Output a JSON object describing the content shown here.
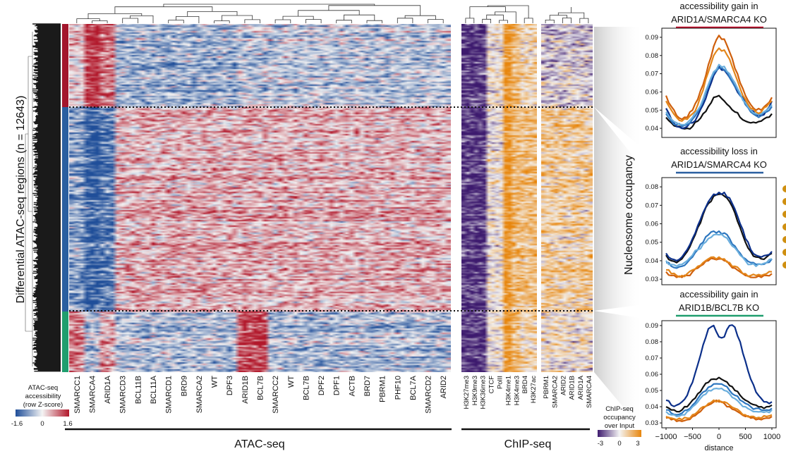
{
  "figure": {
    "row_axis_label": "Differential ATAC-seq regions (n = 12643)",
    "colorbar_atac": {
      "title_lines": [
        "ATAC-seq",
        "accessibility",
        "(row Z-score)"
      ],
      "ticks": [
        "-1.6",
        "0",
        "1.6"
      ],
      "colors": [
        "#1f4e99",
        "#f4f4f4",
        "#b2182b"
      ]
    },
    "colorbar_chip": {
      "title_lines": [
        "ChIP-seq",
        "occupancy",
        "over Input"
      ],
      "ticks": [
        "-3",
        "0",
        "3"
      ],
      "colors": [
        "#3d1a6e",
        "#f4f4f4",
        "#e8860c"
      ]
    },
    "cluster_colors": [
      "#a3162c",
      "#2a5fa0",
      "#1f9e6e"
    ],
    "group_labels": {
      "atac": "ATAC-seq",
      "chip": "ChIP-seq"
    },
    "atac_columns": [
      "SMARCC1",
      "SMARCA4",
      "ARID1A",
      "SMARCD3",
      "BCL11B",
      "BCL11A",
      "SMARCD1",
      "BRD9",
      "SMARCA2",
      "WT",
      "DPF3",
      "ARID1B",
      "BCL7B",
      "SMARCC2",
      "WT",
      "BCL7B",
      "DPF2",
      "DPF1",
      "ACTB",
      "BRD7",
      "PBRM1",
      "PHF10",
      "BCL7A",
      "SMARCD2",
      "ARID2"
    ],
    "chip_columns_histone": [
      "H3K27me3",
      "H3K9me3",
      "H3K36me3",
      "CTCF",
      "PolII",
      "H3K4me1",
      "H3K4me3",
      "BRD4",
      "H3K27ac"
    ],
    "chip_columns_baf": [
      "PBRM1",
      "SMARCA2",
      "ARID2",
      "ARID1B",
      "ARID1A",
      "SMARCA4"
    ]
  },
  "chart_data": [
    {
      "type": "line",
      "title_lines": [
        "accessibility gain in",
        "ARID1A/SMARCA4 KO"
      ],
      "title_underline_color": "#c8102e",
      "x": [
        -1000,
        -900,
        -800,
        -700,
        -600,
        -500,
        -400,
        -300,
        -200,
        -100,
        0,
        100,
        200,
        300,
        400,
        500,
        600,
        700,
        800,
        900,
        1000
      ],
      "ylim": [
        0.035,
        0.095
      ],
      "yticks": [
        0.04,
        0.05,
        0.06,
        0.07,
        0.08,
        0.09
      ],
      "show_xticks": false,
      "series": [
        {
          "color": "#111111",
          "values": [
            0.046,
            0.043,
            0.041,
            0.04,
            0.04,
            0.041,
            0.044,
            0.048,
            0.052,
            0.057,
            0.058,
            0.055,
            0.052,
            0.049,
            0.046,
            0.044,
            0.043,
            0.043,
            0.044,
            0.046,
            0.048
          ]
        },
        {
          "color": "#0b2f8a",
          "values": [
            0.051,
            0.045,
            0.041,
            0.04,
            0.041,
            0.043,
            0.047,
            0.053,
            0.061,
            0.069,
            0.074,
            0.072,
            0.068,
            0.063,
            0.058,
            0.054,
            0.05,
            0.047,
            0.047,
            0.05,
            0.055
          ]
        },
        {
          "color": "#2d76bf",
          "values": [
            0.048,
            0.044,
            0.042,
            0.041,
            0.042,
            0.045,
            0.049,
            0.055,
            0.063,
            0.07,
            0.073,
            0.072,
            0.068,
            0.063,
            0.058,
            0.053,
            0.049,
            0.047,
            0.047,
            0.049,
            0.052
          ]
        },
        {
          "color": "#6aaedd",
          "values": [
            0.049,
            0.045,
            0.043,
            0.042,
            0.043,
            0.046,
            0.05,
            0.056,
            0.064,
            0.071,
            0.075,
            0.074,
            0.07,
            0.065,
            0.059,
            0.054,
            0.05,
            0.048,
            0.048,
            0.05,
            0.053
          ]
        },
        {
          "color": "#cf5f0c",
          "values": [
            0.058,
            0.052,
            0.047,
            0.045,
            0.046,
            0.05,
            0.056,
            0.064,
            0.075,
            0.085,
            0.091,
            0.089,
            0.082,
            0.073,
            0.065,
            0.058,
            0.053,
            0.05,
            0.05,
            0.053,
            0.057
          ]
        },
        {
          "color": "#e3861a",
          "values": [
            0.055,
            0.05,
            0.046,
            0.044,
            0.045,
            0.048,
            0.053,
            0.061,
            0.071,
            0.08,
            0.084,
            0.083,
            0.078,
            0.07,
            0.062,
            0.056,
            0.051,
            0.049,
            0.049,
            0.052,
            0.055
          ]
        }
      ]
    },
    {
      "type": "line",
      "title_lines": [
        "accessibility loss in",
        "ARID1A/SMARCA4 KO"
      ],
      "title_underline_color": "#2a5fa0",
      "x": [
        -1000,
        -900,
        -800,
        -700,
        -600,
        -500,
        -400,
        -300,
        -200,
        -100,
        0,
        100,
        200,
        300,
        400,
        500,
        600,
        700,
        800,
        900,
        1000
      ],
      "ylim": [
        0.027,
        0.085
      ],
      "yticks": [
        0.03,
        0.04,
        0.05,
        0.06,
        0.07,
        0.08
      ],
      "show_xticks": false,
      "series": [
        {
          "color": "#111111",
          "values": [
            0.043,
            0.04,
            0.039,
            0.041,
            0.045,
            0.051,
            0.058,
            0.065,
            0.071,
            0.075,
            0.076,
            0.075,
            0.072,
            0.066,
            0.058,
            0.05,
            0.045,
            0.042,
            0.041,
            0.042,
            0.044
          ]
        },
        {
          "color": "#0b2f8a",
          "values": [
            0.044,
            0.041,
            0.04,
            0.042,
            0.046,
            0.052,
            0.059,
            0.066,
            0.072,
            0.076,
            0.077,
            0.077,
            0.074,
            0.068,
            0.06,
            0.052,
            0.046,
            0.043,
            0.042,
            0.043,
            0.045
          ]
        },
        {
          "color": "#2d76bf",
          "values": [
            0.039,
            0.037,
            0.036,
            0.037,
            0.039,
            0.042,
            0.046,
            0.05,
            0.054,
            0.056,
            0.056,
            0.055,
            0.052,
            0.048,
            0.044,
            0.041,
            0.039,
            0.038,
            0.038,
            0.039,
            0.041
          ]
        },
        {
          "color": "#6aaedd",
          "values": [
            0.04,
            0.038,
            0.037,
            0.038,
            0.04,
            0.043,
            0.046,
            0.049,
            0.052,
            0.054,
            0.054,
            0.053,
            0.05,
            0.047,
            0.043,
            0.04,
            0.038,
            0.037,
            0.038,
            0.039,
            0.041
          ]
        },
        {
          "color": "#cf5f0c",
          "values": [
            0.034,
            0.032,
            0.031,
            0.031,
            0.032,
            0.034,
            0.036,
            0.038,
            0.04,
            0.041,
            0.041,
            0.04,
            0.038,
            0.036,
            0.034,
            0.032,
            0.031,
            0.031,
            0.031,
            0.032,
            0.033
          ]
        },
        {
          "color": "#e3861a",
          "values": [
            0.035,
            0.033,
            0.032,
            0.032,
            0.033,
            0.035,
            0.037,
            0.039,
            0.041,
            0.042,
            0.042,
            0.041,
            0.039,
            0.037,
            0.035,
            0.033,
            0.032,
            0.032,
            0.032,
            0.033,
            0.034
          ]
        }
      ]
    },
    {
      "type": "line",
      "title_lines": [
        "accessibility gain in",
        "ARID1B/BCL7B KO"
      ],
      "title_underline_color": "#1f9e6e",
      "x": [
        -1000,
        -900,
        -800,
        -700,
        -600,
        -500,
        -400,
        -300,
        -200,
        -100,
        0,
        100,
        200,
        300,
        400,
        500,
        600,
        700,
        800,
        900,
        1000
      ],
      "ylim": [
        0.027,
        0.093
      ],
      "yticks": [
        0.03,
        0.04,
        0.05,
        0.06,
        0.07,
        0.08,
        0.09
      ],
      "show_xticks": true,
      "xticks": [
        -1000,
        -500,
        0,
        500,
        1000
      ],
      "xticklabels": [
        "−1000",
        "−500",
        "0",
        "500",
        "1000"
      ],
      "xlabel": "distance",
      "series": [
        {
          "color": "#111111",
          "values": [
            0.04,
            0.038,
            0.037,
            0.038,
            0.04,
            0.044,
            0.048,
            0.052,
            0.055,
            0.057,
            0.058,
            0.056,
            0.053,
            0.05,
            0.047,
            0.044,
            0.042,
            0.041,
            0.04,
            0.04,
            0.041
          ]
        },
        {
          "color": "#0b2f8a",
          "values": [
            0.044,
            0.041,
            0.041,
            0.043,
            0.047,
            0.055,
            0.066,
            0.078,
            0.088,
            0.09,
            0.083,
            0.083,
            0.09,
            0.089,
            0.08,
            0.068,
            0.057,
            0.049,
            0.045,
            0.043,
            0.043
          ]
        },
        {
          "color": "#2d76bf",
          "values": [
            0.038,
            0.036,
            0.035,
            0.036,
            0.038,
            0.041,
            0.045,
            0.049,
            0.052,
            0.054,
            0.054,
            0.053,
            0.05,
            0.047,
            0.044,
            0.042,
            0.04,
            0.039,
            0.038,
            0.038,
            0.039
          ]
        },
        {
          "color": "#6aaedd",
          "values": [
            0.037,
            0.035,
            0.034,
            0.035,
            0.037,
            0.04,
            0.043,
            0.047,
            0.05,
            0.051,
            0.051,
            0.05,
            0.048,
            0.045,
            0.042,
            0.04,
            0.038,
            0.037,
            0.037,
            0.037,
            0.038
          ]
        },
        {
          "color": "#cf5f0c",
          "values": [
            0.033,
            0.032,
            0.031,
            0.031,
            0.032,
            0.034,
            0.036,
            0.039,
            0.041,
            0.043,
            0.043,
            0.042,
            0.04,
            0.038,
            0.036,
            0.034,
            0.033,
            0.032,
            0.032,
            0.033,
            0.034
          ]
        },
        {
          "color": "#e3861a",
          "values": [
            0.034,
            0.033,
            0.032,
            0.032,
            0.033,
            0.035,
            0.037,
            0.04,
            0.042,
            0.044,
            0.044,
            0.043,
            0.041,
            0.039,
            0.037,
            0.035,
            0.034,
            0.033,
            0.033,
            0.034,
            0.035
          ]
        }
      ]
    }
  ],
  "profile_panel": {
    "ylabel": "Nucleosome occupancy",
    "legend_dot_colors": [
      "#cf8f10",
      "#cf8f10",
      "#cf8f10",
      "#cf8f10",
      "#cf8f10",
      "#cf8f10",
      "#cf8f10"
    ]
  }
}
